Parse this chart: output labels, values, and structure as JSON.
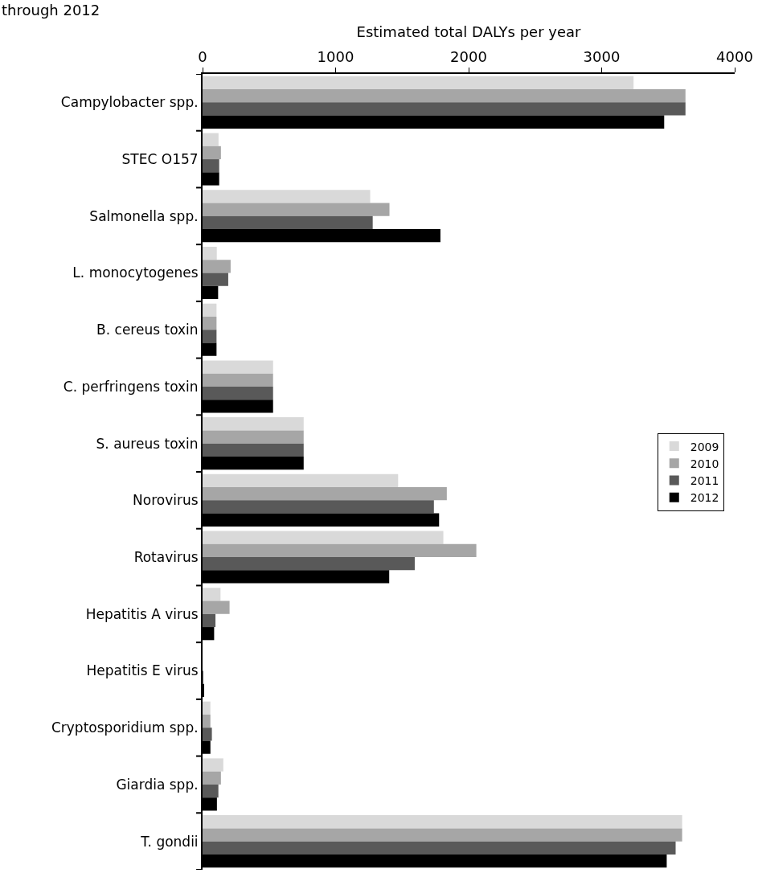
{
  "chart_data": {
    "type": "bar",
    "orientation": "horizontal",
    "title": "through 2012",
    "xlabel": "Estimated total DALYs per year",
    "categories": [
      "Campylobacter spp.",
      "STEC O157",
      "Salmonella spp.",
      "L. monocytogenes",
      "B. cereus toxin",
      "C. perfringens toxin",
      "S. aureus toxin",
      "Norovirus",
      "Rotavirus",
      "Hepatitis A virus",
      "Hepatitis E virus",
      "Cryptosporidium spp.",
      "Giardia spp.",
      "T. gondii"
    ],
    "series": [
      {
        "name": "2009",
        "color": "#d9d9d9",
        "values": [
          3240,
          120,
          1260,
          107,
          105,
          530,
          760,
          1470,
          1810,
          135,
          null,
          59,
          156,
          3605
        ]
      },
      {
        "name": "2010",
        "color": "#a6a6a6",
        "values": [
          3630,
          138,
          1405,
          211,
          105,
          530,
          760,
          1836,
          2058,
          203,
          null,
          59,
          138,
          3605
        ]
      },
      {
        "name": "2011",
        "color": "#595959",
        "values": [
          3630,
          125,
          1279,
          193,
          105,
          530,
          760,
          1739,
          1595,
          97,
          5,
          70,
          119,
          3556
        ]
      },
      {
        "name": "2012",
        "color": "#000000",
        "values": [
          3470,
          125,
          1788,
          117,
          105,
          530,
          760,
          1778,
          1403,
          87,
          10,
          59,
          108,
          3489
        ]
      }
    ],
    "xlim": [
      0,
      4000
    ],
    "xticks": [
      0,
      1000,
      2000,
      3000,
      4000
    ],
    "legend": "right"
  }
}
